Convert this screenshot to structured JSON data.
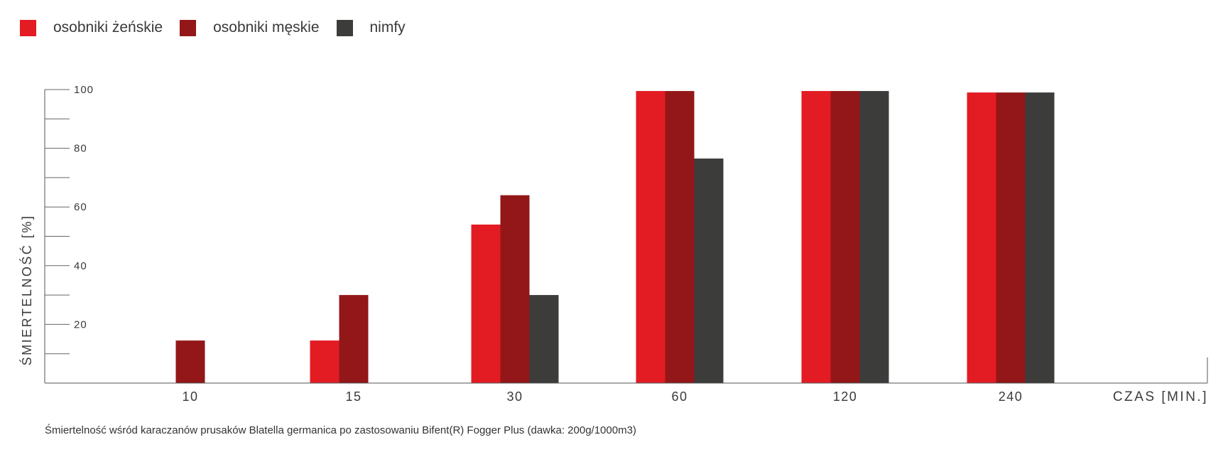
{
  "legend": {
    "items": [
      {
        "label": "osobniki żeńskie",
        "color": "#e31b23"
      },
      {
        "label": "osobniki męskie",
        "color": "#931719"
      },
      {
        "label": "nimfy",
        "color": "#3c3c3b"
      }
    ]
  },
  "caption": "Śmiertelność wśród karaczanów prusaków Blatella germanica po zastosowaniu Bifent(R) Fogger Plus (dawka: 200g/1000m3)",
  "chart_data": {
    "type": "bar",
    "categories": [
      "10",
      "15",
      "30",
      "60",
      "120",
      "240"
    ],
    "series": [
      {
        "name": "osobniki żeńskie",
        "color": "#e31b23",
        "values": [
          0,
          14.5,
          54,
          99.5,
          99.5,
          99
        ]
      },
      {
        "name": "osobniki męskie",
        "color": "#931719",
        "values": [
          14.5,
          30,
          64,
          99.5,
          99.5,
          99
        ]
      },
      {
        "name": "nimfy",
        "color": "#3c3c3b",
        "values": [
          0,
          0,
          30,
          76.5,
          99.5,
          99
        ]
      }
    ],
    "xlabel": "CZAS [MIN.]",
    "ylabel": "ŚMIERTELNOŚĆ [%]",
    "ylim": [
      0,
      100
    ],
    "yticks": [
      20,
      40,
      60,
      80,
      100
    ],
    "minor_yticks": [
      10,
      30,
      50,
      70,
      90
    ],
    "grid": false,
    "legend_position": "top-left"
  }
}
